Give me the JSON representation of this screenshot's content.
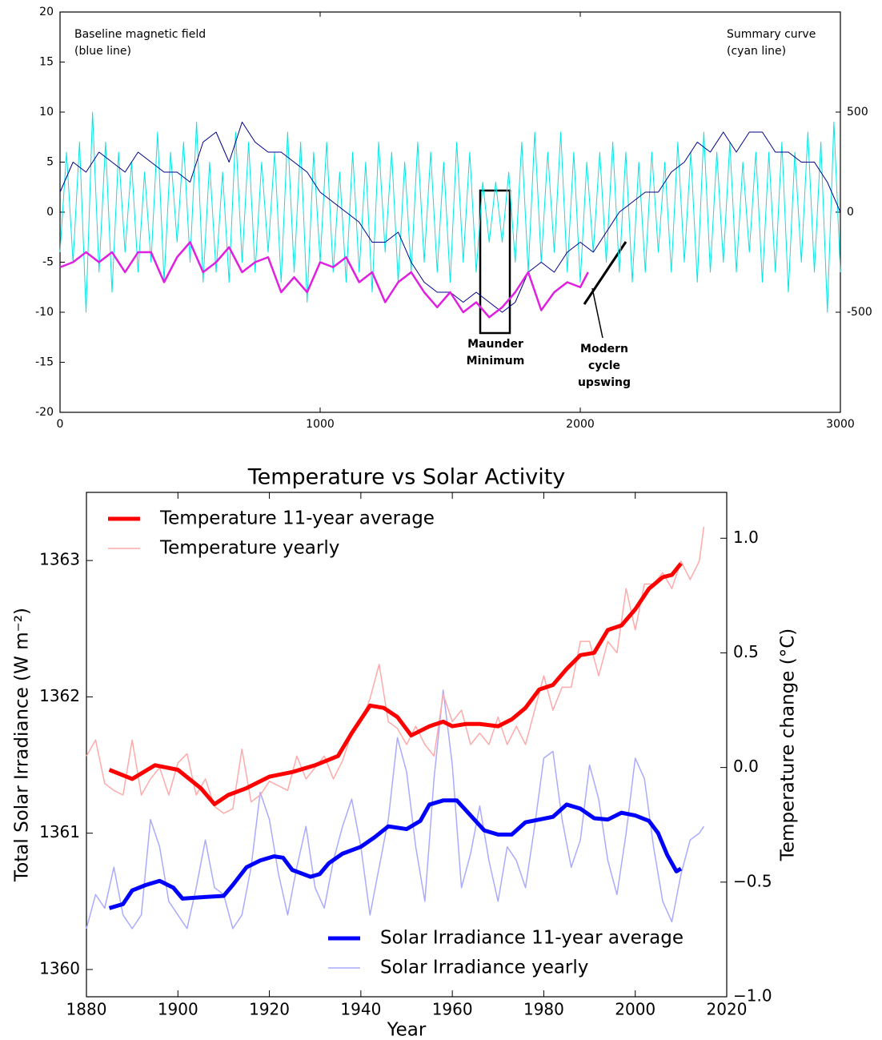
{
  "chart_data": [
    {
      "type": "line",
      "annotations": [
        "Baseline magnetic field",
        "(blue line)",
        "Summary curve",
        "(cyan line)",
        "Maunder",
        "Minimum",
        "Modern",
        "cycle",
        "upswing"
      ],
      "xlim": [
        0,
        3000
      ],
      "xticks": [
        0,
        1000,
        2000,
        3000
      ],
      "ylim": [
        -20,
        20
      ],
      "yticks": [
        -20,
        -15,
        -10,
        -5,
        0,
        5,
        10,
        15,
        20
      ],
      "y2lim": [
        -1000,
        1000
      ],
      "y2ticks": [
        -500,
        0,
        500
      ],
      "series": [
        {
          "color": "#00e5e5",
          "axis": "y2",
          "linewidth": 1,
          "x": [
            0,
            25,
            50,
            75,
            100,
            125,
            150,
            175,
            200,
            225,
            250,
            275,
            300,
            325,
            350,
            375,
            400,
            425,
            450,
            475,
            500,
            525,
            550,
            575,
            600,
            625,
            650,
            675,
            700,
            725,
            750,
            775,
            800,
            825,
            850,
            875,
            900,
            925,
            950,
            975,
            1000,
            1025,
            1050,
            1075,
            1100,
            1125,
            1150,
            1175,
            1200,
            1225,
            1250,
            1275,
            1300,
            1325,
            1350,
            1375,
            1400,
            1425,
            1450,
            1475,
            1500,
            1525,
            1550,
            1575,
            1600,
            1625,
            1650,
            1675,
            1700,
            1725,
            1750,
            1775,
            1800,
            1825,
            1850,
            1875,
            1900,
            1925,
            1950,
            1975,
            2000,
            2025,
            2050,
            2075,
            2100,
            2125,
            2150,
            2175,
            2200,
            2225,
            2250,
            2275,
            2300,
            2325,
            2350,
            2375,
            2400,
            2425,
            2450,
            2475,
            2500,
            2525,
            2550,
            2575,
            2600,
            2625,
            2650,
            2675,
            2700,
            2725,
            2750,
            2775,
            2800,
            2825,
            2850,
            2875,
            2900,
            2925,
            2950,
            2975,
            3000
          ],
          "values": [
            -200,
            300,
            -250,
            350,
            -500,
            500,
            -300,
            350,
            -400,
            300,
            -200,
            250,
            -300,
            200,
            -250,
            400,
            -350,
            300,
            -150,
            350,
            -250,
            450,
            -350,
            250,
            -300,
            200,
            -350,
            400,
            -250,
            350,
            -300,
            250,
            -200,
            300,
            -350,
            400,
            -300,
            350,
            -450,
            300,
            -250,
            350,
            -300,
            200,
            -350,
            300,
            -300,
            250,
            -400,
            350,
            -200,
            300,
            -350,
            250,
            -300,
            350,
            -250,
            300,
            -300,
            250,
            -350,
            350,
            -250,
            300,
            -300,
            150,
            -150,
            150,
            -150,
            200,
            -250,
            350,
            -300,
            400,
            -250,
            300,
            -200,
            400,
            -300,
            300,
            -350,
            250,
            -200,
            300,
            -250,
            350,
            -300,
            300,
            -350,
            250,
            -300,
            300,
            -200,
            250,
            -300,
            350,
            -250,
            300,
            -350,
            400,
            -300,
            300,
            -250,
            350,
            -300,
            250,
            -200,
            300,
            -350,
            300,
            -300,
            350,
            -400,
            300,
            -250,
            400,
            -300,
            350,
            -500,
            450,
            -300
          ]
        },
        {
          "color": "#00008b",
          "linewidth": 1,
          "x": [
            0,
            50,
            100,
            150,
            200,
            250,
            300,
            350,
            400,
            450,
            500,
            550,
            600,
            650,
            700,
            750,
            800,
            850,
            900,
            950,
            1000,
            1050,
            1100,
            1150,
            1200,
            1250,
            1300,
            1350,
            1400,
            1450,
            1500,
            1550,
            1600,
            1650,
            1700,
            1750,
            1800,
            1850,
            1900,
            1950,
            2000,
            2050,
            2100,
            2150,
            2200,
            2250,
            2300,
            2350,
            2400,
            2450,
            2500,
            2550,
            2600,
            2650,
            2700,
            2750,
            2800,
            2850,
            2900,
            2950,
            3000
          ],
          "values": [
            2,
            5,
            4,
            6,
            5,
            4,
            6,
            5,
            4,
            4,
            3,
            7,
            8,
            5,
            9,
            7,
            6,
            6,
            5,
            4,
            2,
            1,
            0,
            -1,
            -3,
            -3,
            -2,
            -5,
            -7,
            -8,
            -8,
            -9,
            -8,
            -9,
            -10,
            -9,
            -6,
            -5,
            -6,
            -4,
            -3,
            -4,
            -2,
            0,
            1,
            2,
            2,
            4,
            5,
            7,
            6,
            8,
            6,
            8,
            8,
            6,
            6,
            5,
            5,
            3,
            0
          ]
        },
        {
          "color": "#e020e0",
          "linewidth": 2.5,
          "x": [
            0,
            50,
            100,
            150,
            200,
            250,
            300,
            350,
            400,
            450,
            500,
            550,
            600,
            650,
            700,
            750,
            800,
            850,
            900,
            950,
            1000,
            1050,
            1100,
            1150,
            1200,
            1250,
            1300,
            1350,
            1400,
            1450,
            1500,
            1550,
            1600,
            1650,
            1700,
            1750,
            1800,
            1850,
            1900,
            1950,
            2000,
            2030
          ],
          "values": [
            -5.5,
            -5,
            -4,
            -5,
            -4,
            -6,
            -4,
            -4,
            -7,
            -4.5,
            -3,
            -6,
            -5,
            -3.5,
            -6,
            -5,
            -4.5,
            -8,
            -6.5,
            -8,
            -5,
            -5.5,
            -4.5,
            -7,
            -6,
            -9,
            -7,
            -6,
            -8,
            -9.5,
            -8,
            -10,
            -9,
            -10.5,
            -9.5,
            -8,
            -6,
            -9.8,
            -8,
            -7,
            -7.5,
            -6
          ]
        }
      ]
    },
    {
      "type": "line",
      "title": "Temperature vs Solar Activity",
      "xlabel": "Year",
      "ylabel": "Total Solar Irradiance (W m⁻²)",
      "y2label": "Temperature change (°C)",
      "xlim": [
        1880,
        2020
      ],
      "xticks": [
        1880,
        1900,
        1920,
        1940,
        1960,
        1980,
        2000,
        2020
      ],
      "ylim": [
        1359.8,
        1363.5
      ],
      "yticks": [
        1360,
        1361,
        1362,
        1363
      ],
      "y2lim": [
        -1.0,
        1.2
      ],
      "y2ticks": [
        {
          "value": -1.0,
          "label": "−1.0"
        },
        {
          "value": -0.5,
          "label": "−0.5"
        },
        {
          "value": 0.0,
          "label": "0.0"
        },
        {
          "value": 0.5,
          "label": "0.5"
        },
        {
          "value": 1.0,
          "label": "1.0"
        }
      ],
      "series": [
        {
          "name": "Temperature 11-year average",
          "color": "#ff0000",
          "axis": "y2",
          "linewidth": 5,
          "legend": "upper left",
          "x": [
            1885,
            1890,
            1895,
            1900,
            1905,
            1908,
            1911,
            1915,
            1920,
            1925,
            1930,
            1935,
            1938,
            1942,
            1945,
            1948,
            1951,
            1955,
            1958,
            1960,
            1963,
            1966,
            1970,
            1973,
            1976,
            1979,
            1982,
            1985,
            1988,
            1991,
            1994,
            1997,
            2000,
            2003,
            2006,
            2008,
            2010
          ],
          "values": [
            -0.01,
            -0.05,
            0.01,
            -0.01,
            -0.09,
            -0.16,
            -0.12,
            -0.09,
            -0.04,
            -0.02,
            0.01,
            0.05,
            0.15,
            0.27,
            0.26,
            0.22,
            0.14,
            0.18,
            0.2,
            0.18,
            0.19,
            0.19,
            0.18,
            0.21,
            0.26,
            0.34,
            0.36,
            0.43,
            0.49,
            0.5,
            0.6,
            0.62,
            0.69,
            0.78,
            0.83,
            0.84,
            0.89
          ]
        },
        {
          "name": "Temperature yearly",
          "color": "#ffaaaa",
          "axis": "y2",
          "linewidth": 1.5,
          "legend": "upper left",
          "x": [
            1880,
            1882,
            1884,
            1886,
            1888,
            1890,
            1892,
            1894,
            1896,
            1898,
            1900,
            1902,
            1904,
            1906,
            1908,
            1910,
            1912,
            1914,
            1916,
            1918,
            1920,
            1922,
            1924,
            1926,
            1928,
            1930,
            1932,
            1934,
            1936,
            1938,
            1940,
            1942,
            1944,
            1946,
            1948,
            1950,
            1952,
            1954,
            1956,
            1958,
            1960,
            1962,
            1964,
            1966,
            1968,
            1970,
            1972,
            1974,
            1976,
            1978,
            1980,
            1982,
            1984,
            1986,
            1988,
            1990,
            1992,
            1994,
            1996,
            1998,
            2000,
            2002,
            2004,
            2006,
            2008,
            2010,
            2012,
            2014,
            2015
          ],
          "values": [
            0.05,
            0.12,
            -0.07,
            -0.1,
            -0.12,
            0.12,
            -0.12,
            -0.05,
            0.0,
            -0.12,
            0.02,
            0.06,
            -0.12,
            -0.05,
            -0.17,
            -0.2,
            -0.18,
            0.08,
            -0.15,
            -0.12,
            -0.06,
            -0.08,
            -0.1,
            0.05,
            -0.05,
            0.0,
            0.05,
            -0.05,
            0.03,
            0.15,
            0.2,
            0.3,
            0.45,
            0.2,
            0.17,
            0.1,
            0.18,
            0.1,
            0.05,
            0.32,
            0.2,
            0.25,
            0.1,
            0.15,
            0.1,
            0.22,
            0.1,
            0.18,
            0.1,
            0.25,
            0.4,
            0.25,
            0.35,
            0.35,
            0.55,
            0.55,
            0.4,
            0.55,
            0.5,
            0.78,
            0.6,
            0.8,
            0.8,
            0.85,
            0.78,
            0.9,
            0.82,
            0.9,
            1.05
          ]
        },
        {
          "name": "Solar Irradiance 11-year average",
          "color": "#0000ff",
          "linewidth": 5,
          "legend": "lower right",
          "x": [
            1885,
            1888,
            1890,
            1893,
            1896,
            1899,
            1901,
            1905,
            1910,
            1912,
            1915,
            1918,
            1921,
            1923,
            1925,
            1929,
            1931,
            1933,
            1936,
            1940,
            1943,
            1946,
            1950,
            1953,
            1955,
            1958,
            1961,
            1964,
            1967,
            1970,
            1973,
            1976,
            1979,
            1982,
            1985,
            1988,
            1991,
            1994,
            1997,
            2000,
            2003,
            2005,
            2007,
            2009,
            2010
          ],
          "values": [
            1360.45,
            1360.48,
            1360.58,
            1360.62,
            1360.65,
            1360.6,
            1360.52,
            1360.53,
            1360.54,
            1360.62,
            1360.75,
            1360.8,
            1360.83,
            1360.82,
            1360.73,
            1360.68,
            1360.7,
            1360.78,
            1360.85,
            1360.9,
            1360.97,
            1361.05,
            1361.03,
            1361.09,
            1361.21,
            1361.24,
            1361.24,
            1361.13,
            1361.02,
            1360.99,
            1360.99,
            1361.08,
            1361.1,
            1361.12,
            1361.21,
            1361.18,
            1361.11,
            1361.1,
            1361.15,
            1361.13,
            1361.09,
            1361.0,
            1360.84,
            1360.72,
            1360.74
          ]
        },
        {
          "name": "Solar Irradiance yearly",
          "color": "#aaaaff",
          "linewidth": 1.5,
          "legend": "lower right",
          "x": [
            1880,
            1882,
            1884,
            1886,
            1888,
            1890,
            1892,
            1894,
            1896,
            1898,
            1900,
            1902,
            1904,
            1906,
            1908,
            1910,
            1912,
            1914,
            1916,
            1918,
            1920,
            1922,
            1924,
            1926,
            1928,
            1930,
            1932,
            1934,
            1936,
            1938,
            1940,
            1942,
            1944,
            1946,
            1948,
            1950,
            1952,
            1954,
            1956,
            1958,
            1960,
            1962,
            1964,
            1966,
            1968,
            1970,
            1972,
            1974,
            1976,
            1978,
            1980,
            1982,
            1984,
            1986,
            1988,
            1990,
            1992,
            1994,
            1996,
            1998,
            2000,
            2002,
            2004,
            2006,
            2008,
            2010,
            2012,
            2014,
            2015
          ],
          "values": [
            1360.3,
            1360.55,
            1360.45,
            1360.75,
            1360.4,
            1360.3,
            1360.4,
            1361.1,
            1360.9,
            1360.5,
            1360.4,
            1360.3,
            1360.6,
            1360.95,
            1360.6,
            1360.55,
            1360.3,
            1360.4,
            1360.75,
            1361.3,
            1361.1,
            1360.7,
            1360.4,
            1360.75,
            1361.05,
            1360.6,
            1360.45,
            1360.8,
            1361.05,
            1361.25,
            1360.9,
            1360.4,
            1360.75,
            1361.1,
            1361.7,
            1361.45,
            1360.9,
            1360.5,
            1361.4,
            1362.05,
            1361.5,
            1360.6,
            1360.85,
            1361.2,
            1360.8,
            1360.5,
            1360.9,
            1360.8,
            1360.6,
            1361.05,
            1361.55,
            1361.6,
            1361.1,
            1360.75,
            1360.95,
            1361.5,
            1361.25,
            1360.8,
            1360.55,
            1361.0,
            1361.55,
            1361.4,
            1360.9,
            1360.5,
            1360.35,
            1360.7,
            1360.95,
            1361.0,
            1361.05
          ]
        }
      ]
    }
  ]
}
